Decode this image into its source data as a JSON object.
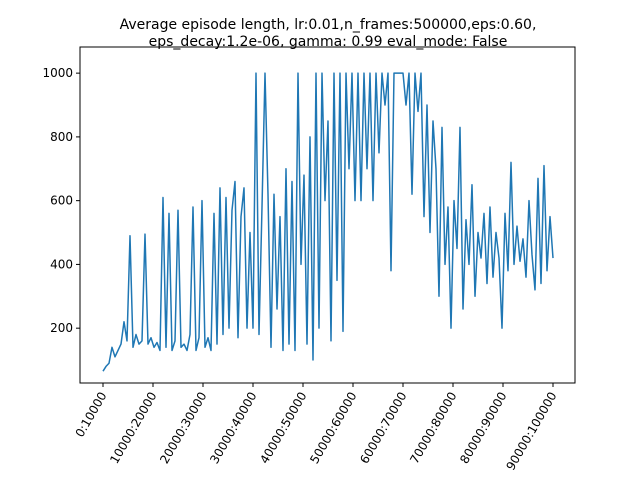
{
  "chart_data": {
    "type": "line",
    "title": [
      "Average episode length, lr:0.01,n_frames:500000,eps:0.60,",
      "eps_decay:1.2e-06, gamma: 0.99 eval_mode: False"
    ],
    "color": "#1f77b4",
    "x": [
      0,
      6,
      12,
      18,
      24,
      30,
      36,
      42,
      48,
      54,
      60,
      66,
      72,
      78,
      84,
      90,
      96,
      102,
      108,
      114,
      120,
      126,
      132,
      138,
      144,
      150,
      156,
      162,
      168,
      174,
      180,
      186,
      192,
      198,
      204,
      210,
      216,
      222,
      228,
      234,
      240,
      246,
      252,
      258,
      264,
      270,
      276,
      282,
      288,
      294,
      300,
      306,
      312,
      318,
      324,
      330,
      336,
      342,
      348,
      354,
      360,
      366,
      372,
      378,
      384,
      390,
      396,
      402,
      408,
      414,
      420,
      426,
      432,
      438,
      444,
      450,
      456,
      462,
      468,
      474,
      480,
      486,
      492,
      498,
      504,
      510,
      516,
      522,
      528,
      534,
      540,
      546,
      552,
      558,
      564,
      570,
      576,
      582,
      588,
      594,
      600,
      606,
      612,
      618,
      624,
      630,
      636,
      642,
      648,
      654,
      660,
      666,
      672,
      678,
      684,
      690,
      696,
      702,
      708,
      714,
      720,
      726,
      732,
      738,
      744,
      750,
      756,
      762,
      768,
      774,
      780,
      786,
      792,
      798,
      804,
      810,
      816,
      822,
      828,
      834,
      840,
      846,
      852,
      858,
      864,
      870,
      876,
      882,
      888,
      894,
      900
    ],
    "values": [
      65,
      80,
      90,
      140,
      110,
      130,
      150,
      220,
      160,
      490,
      140,
      180,
      150,
      160,
      495,
      150,
      170,
      140,
      155,
      130,
      610,
      140,
      560,
      130,
      160,
      570,
      140,
      150,
      130,
      180,
      580,
      130,
      170,
      600,
      140,
      170,
      130,
      560,
      150,
      640,
      180,
      610,
      200,
      570,
      660,
      170,
      550,
      640,
      200,
      500,
      200,
      1000,
      180,
      580,
      1000,
      620,
      140,
      620,
      260,
      550,
      130,
      700,
      150,
      660,
      130,
      1000,
      400,
      680,
      150,
      800,
      100,
      1000,
      200,
      1000,
      600,
      850,
      160,
      1000,
      350,
      1000,
      190,
      1000,
      700,
      1000,
      600,
      1000,
      600,
      1000,
      700,
      1000,
      600,
      1000,
      750,
      1000,
      900,
      1000,
      380,
      1000,
      1000,
      1000,
      1000,
      900,
      1000,
      620,
      1000,
      880,
      1000,
      550,
      900,
      500,
      850,
      700,
      300,
      830,
      400,
      580,
      200,
      600,
      450,
      830,
      260,
      540,
      400,
      650,
      300,
      500,
      420,
      560,
      340,
      580,
      360,
      500,
      420,
      200,
      560,
      380,
      720,
      400,
      520,
      410,
      480,
      360,
      600,
      430,
      320,
      670,
      340,
      710,
      380,
      550,
      420
    ],
    "xlim": [
      -46,
      944
    ],
    "ylim": [
      28,
      1082
    ],
    "xticks": [
      {
        "value": 0,
        "label": "0:10000"
      },
      {
        "value": 100,
        "label": "10000:20000"
      },
      {
        "value": 200,
        "label": "20000:30000"
      },
      {
        "value": 300,
        "label": "30000:40000"
      },
      {
        "value": 400,
        "label": "40000:50000"
      },
      {
        "value": 500,
        "label": "50000:60000"
      },
      {
        "value": 600,
        "label": "60000:70000"
      },
      {
        "value": 700,
        "label": "70000:80000"
      },
      {
        "value": 800,
        "label": "80000:90000"
      },
      {
        "value": 900,
        "label": "90000:100000"
      }
    ],
    "yticks": [
      200,
      400,
      600,
      800,
      1000
    ]
  }
}
